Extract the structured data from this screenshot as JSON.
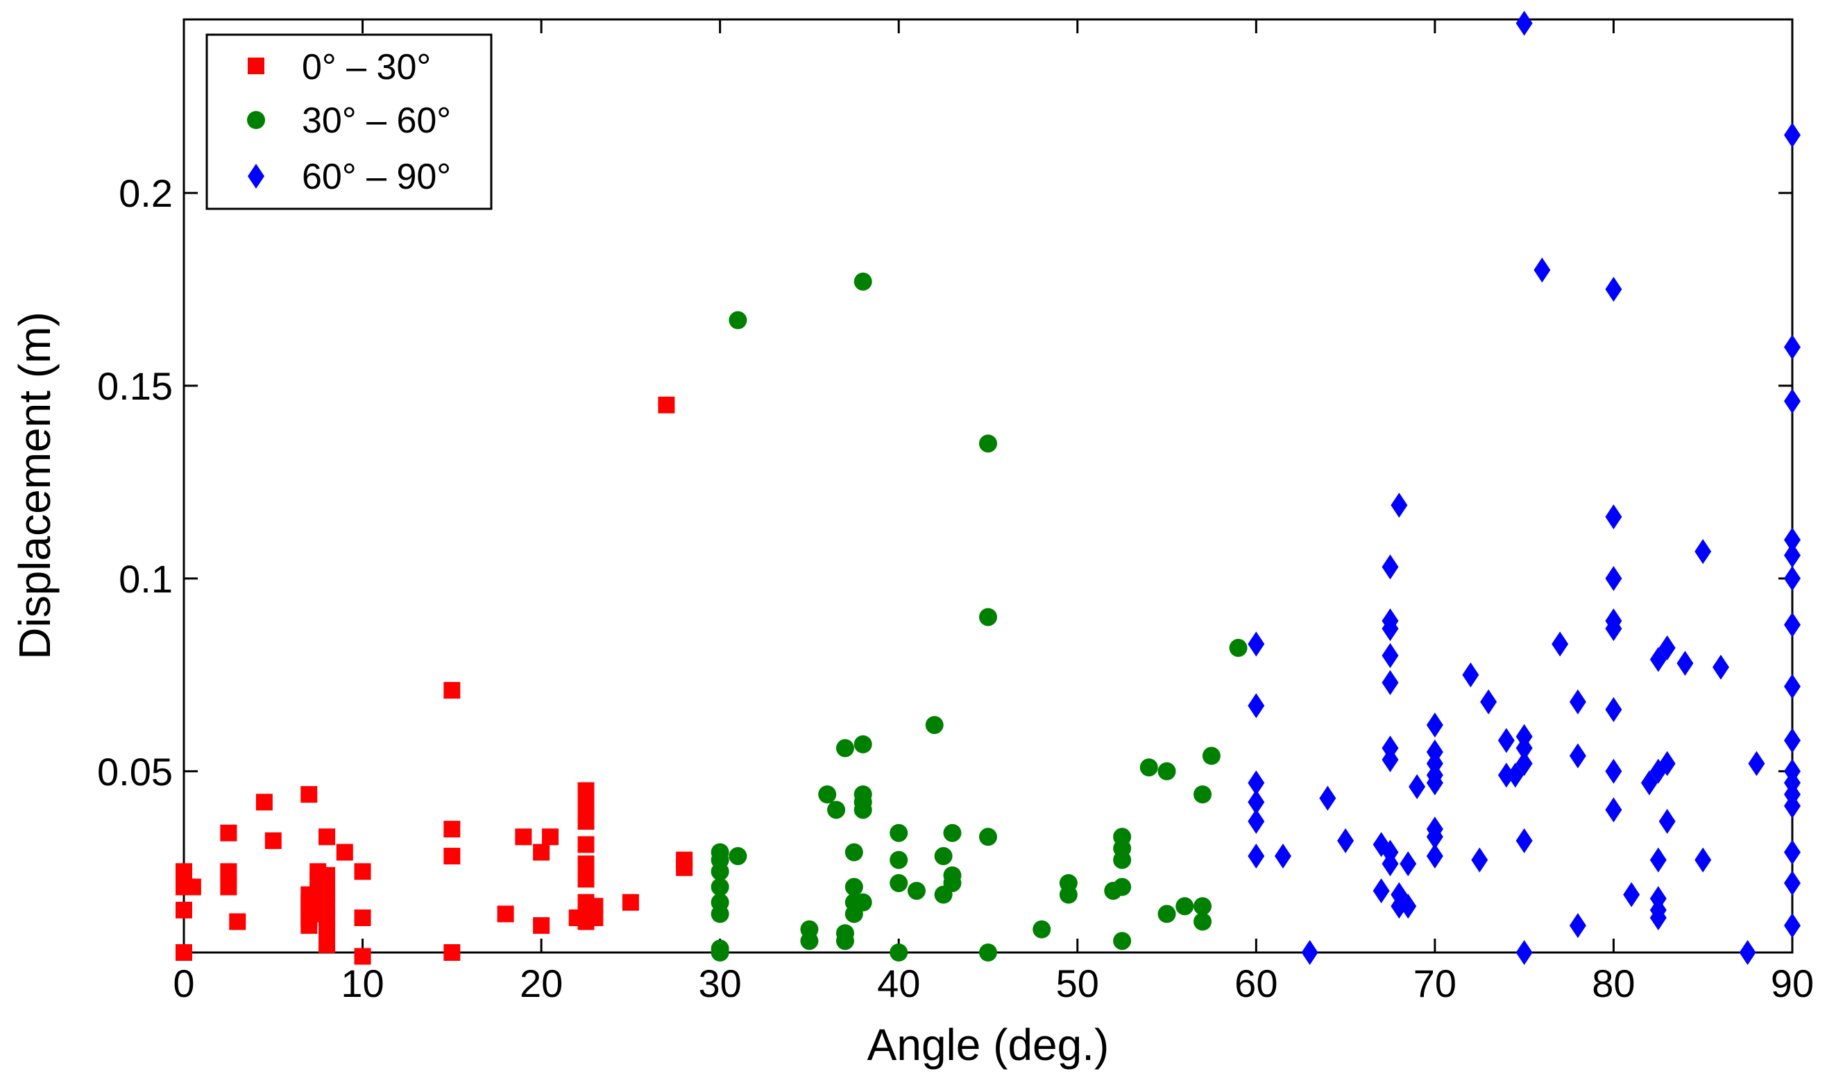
{
  "chart_data": {
    "type": "scatter",
    "title": "",
    "xlabel": "Angle (deg.)",
    "ylabel": "Displacement (m)",
    "xlim": [
      0,
      90
    ],
    "ylim": [
      0.003,
      0.245
    ],
    "xticks": [
      0,
      10,
      20,
      30,
      40,
      50,
      60,
      70,
      80,
      90
    ],
    "xtick_labels": [
      "0",
      "10",
      "20",
      "30",
      "40",
      "50",
      "60",
      "70",
      "80",
      "90"
    ],
    "yticks": [
      0.05,
      0.1,
      0.15,
      0.2
    ],
    "ytick_labels": [
      "0.05",
      "0.1",
      "0.15",
      "0.2"
    ],
    "grid": false,
    "legend_position": "top-left",
    "series": [
      {
        "name": "0° – 30°",
        "marker": "square",
        "color": "#ff0000",
        "points": [
          [
            0,
            0.003
          ],
          [
            0,
            0.014
          ],
          [
            0,
            0.02
          ],
          [
            0,
            0.024
          ],
          [
            0.5,
            0.02
          ],
          [
            2.5,
            0.02
          ],
          [
            2.5,
            0.024
          ],
          [
            2.5,
            0.034
          ],
          [
            3,
            0.011
          ],
          [
            4.5,
            0.042
          ],
          [
            5,
            0.032
          ],
          [
            7,
            0.044
          ],
          [
            7,
            0.01
          ],
          [
            7,
            0.012
          ],
          [
            7,
            0.014
          ],
          [
            7,
            0.016
          ],
          [
            7,
            0.018
          ],
          [
            7.5,
            0.013
          ],
          [
            7.5,
            0.016
          ],
          [
            7.5,
            0.019
          ],
          [
            7.5,
            0.022
          ],
          [
            7.5,
            0.024
          ],
          [
            8,
            0.005
          ],
          [
            8,
            0.009
          ],
          [
            8,
            0.012
          ],
          [
            8,
            0.015
          ],
          [
            8,
            0.018
          ],
          [
            8,
            0.02
          ],
          [
            8,
            0.023
          ],
          [
            8,
            0.033
          ],
          [
            9,
            0.029
          ],
          [
            10,
            0.002
          ],
          [
            10,
            0.012
          ],
          [
            10,
            0.024
          ],
          [
            15,
            0.003
          ],
          [
            15,
            0.028
          ],
          [
            15,
            0.035
          ],
          [
            15,
            0.071
          ],
          [
            18,
            0.013
          ],
          [
            19,
            0.033
          ],
          [
            20,
            0.01
          ],
          [
            20,
            0.029
          ],
          [
            20.5,
            0.033
          ],
          [
            22,
            0.012
          ],
          [
            22.5,
            0.011
          ],
          [
            22.5,
            0.013
          ],
          [
            22.5,
            0.016
          ],
          [
            22.5,
            0.022
          ],
          [
            22.5,
            0.026
          ],
          [
            22.5,
            0.031
          ],
          [
            22.5,
            0.037
          ],
          [
            22.5,
            0.041
          ],
          [
            22.5,
            0.045
          ],
          [
            23,
            0.012
          ],
          [
            23,
            0.015
          ],
          [
            25,
            0.016
          ],
          [
            27,
            0.145
          ],
          [
            28,
            0.025
          ],
          [
            28,
            0.027
          ]
        ]
      },
      {
        "name": "30° – 60°",
        "marker": "circle",
        "color": "#008000",
        "points": [
          [
            30,
            0.003
          ],
          [
            30,
            0.004
          ],
          [
            30,
            0.013
          ],
          [
            30,
            0.016
          ],
          [
            30,
            0.02
          ],
          [
            30,
            0.024
          ],
          [
            30,
            0.027
          ],
          [
            30,
            0.029
          ],
          [
            31,
            0.028
          ],
          [
            31,
            0.167
          ],
          [
            35,
            0.006
          ],
          [
            35,
            0.009
          ],
          [
            36,
            0.044
          ],
          [
            36.5,
            0.04
          ],
          [
            37,
            0.006
          ],
          [
            37,
            0.008
          ],
          [
            37,
            0.056
          ],
          [
            37.5,
            0.013
          ],
          [
            37.5,
            0.016
          ],
          [
            37.5,
            0.02
          ],
          [
            37.5,
            0.029
          ],
          [
            38,
            0.016
          ],
          [
            38,
            0.04
          ],
          [
            38,
            0.042
          ],
          [
            38,
            0.044
          ],
          [
            38,
            0.057
          ],
          [
            38,
            0.177
          ],
          [
            40,
            0.003
          ],
          [
            40,
            0.021
          ],
          [
            40,
            0.027
          ],
          [
            40,
            0.034
          ],
          [
            41,
            0.019
          ],
          [
            42,
            0.062
          ],
          [
            42.5,
            0.018
          ],
          [
            42.5,
            0.028
          ],
          [
            43,
            0.021
          ],
          [
            43,
            0.023
          ],
          [
            43,
            0.034
          ],
          [
            45,
            0.003
          ],
          [
            45,
            0.033
          ],
          [
            45,
            0.09
          ],
          [
            45,
            0.135
          ],
          [
            48,
            0.009
          ],
          [
            49.5,
            0.018
          ],
          [
            49.5,
            0.021
          ],
          [
            52,
            0.019
          ],
          [
            52.5,
            0.006
          ],
          [
            52.5,
            0.02
          ],
          [
            52.5,
            0.027
          ],
          [
            52.5,
            0.03
          ],
          [
            52.5,
            0.033
          ],
          [
            54,
            0.051
          ],
          [
            55,
            0.013
          ],
          [
            55,
            0.05
          ],
          [
            56,
            0.015
          ],
          [
            57,
            0.011
          ],
          [
            57,
            0.015
          ],
          [
            57,
            0.044
          ],
          [
            57.5,
            0.054
          ],
          [
            59,
            0.082
          ]
        ]
      },
      {
        "name": "60° – 90°",
        "marker": "diamond",
        "color": "#0000ff",
        "points": [
          [
            60,
            0.028
          ],
          [
            60,
            0.037
          ],
          [
            60,
            0.042
          ],
          [
            60,
            0.047
          ],
          [
            60,
            0.067
          ],
          [
            60,
            0.083
          ],
          [
            61.5,
            0.028
          ],
          [
            63,
            0.003
          ],
          [
            64,
            0.043
          ],
          [
            65,
            0.032
          ],
          [
            67,
            0.019
          ],
          [
            67,
            0.031
          ],
          [
            67.5,
            0.026
          ],
          [
            67.5,
            0.029
          ],
          [
            67.5,
            0.053
          ],
          [
            67.5,
            0.056
          ],
          [
            67.5,
            0.073
          ],
          [
            67.5,
            0.08
          ],
          [
            67.5,
            0.087
          ],
          [
            67.5,
            0.089
          ],
          [
            67.5,
            0.103
          ],
          [
            68,
            0.015
          ],
          [
            68,
            0.018
          ],
          [
            68,
            0.119
          ],
          [
            68.5,
            0.015
          ],
          [
            68.5,
            0.026
          ],
          [
            69,
            0.046
          ],
          [
            70,
            0.028
          ],
          [
            70,
            0.033
          ],
          [
            70,
            0.035
          ],
          [
            70,
            0.047
          ],
          [
            70,
            0.049
          ],
          [
            70,
            0.052
          ],
          [
            70,
            0.055
          ],
          [
            70,
            0.062
          ],
          [
            72,
            0.075
          ],
          [
            72.5,
            0.027
          ],
          [
            73,
            0.068
          ],
          [
            74,
            0.049
          ],
          [
            74,
            0.058
          ],
          [
            74.5,
            0.049
          ],
          [
            75,
            0.003
          ],
          [
            75,
            0.032
          ],
          [
            75,
            0.052
          ],
          [
            75,
            0.056
          ],
          [
            75,
            0.059
          ],
          [
            75,
            0.244
          ],
          [
            76,
            0.18
          ],
          [
            77,
            0.083
          ],
          [
            78,
            0.01
          ],
          [
            78,
            0.054
          ],
          [
            78,
            0.068
          ],
          [
            80,
            0.04
          ],
          [
            80,
            0.05
          ],
          [
            80,
            0.066
          ],
          [
            80,
            0.087
          ],
          [
            80,
            0.089
          ],
          [
            80,
            0.1
          ],
          [
            80,
            0.116
          ],
          [
            80,
            0.175
          ],
          [
            81,
            0.018
          ],
          [
            82,
            0.047
          ],
          [
            82.5,
            0.012
          ],
          [
            82.5,
            0.014
          ],
          [
            82.5,
            0.017
          ],
          [
            82.5,
            0.027
          ],
          [
            82.5,
            0.05
          ],
          [
            82.5,
            0.079
          ],
          [
            83,
            0.037
          ],
          [
            83,
            0.052
          ],
          [
            83,
            0.082
          ],
          [
            84,
            0.078
          ],
          [
            85,
            0.027
          ],
          [
            85,
            0.107
          ],
          [
            86,
            0.077
          ],
          [
            87.5,
            0.003
          ],
          [
            88,
            0.052
          ],
          [
            90,
            0.01
          ],
          [
            90,
            0.021
          ],
          [
            90,
            0.029
          ],
          [
            90,
            0.041
          ],
          [
            90,
            0.044
          ],
          [
            90,
            0.047
          ],
          [
            90,
            0.05
          ],
          [
            90,
            0.058
          ],
          [
            90,
            0.072
          ],
          [
            90,
            0.088
          ],
          [
            90,
            0.1
          ],
          [
            90,
            0.106
          ],
          [
            90,
            0.11
          ],
          [
            90,
            0.146
          ],
          [
            90,
            0.16
          ],
          [
            90,
            0.215
          ]
        ]
      }
    ]
  }
}
